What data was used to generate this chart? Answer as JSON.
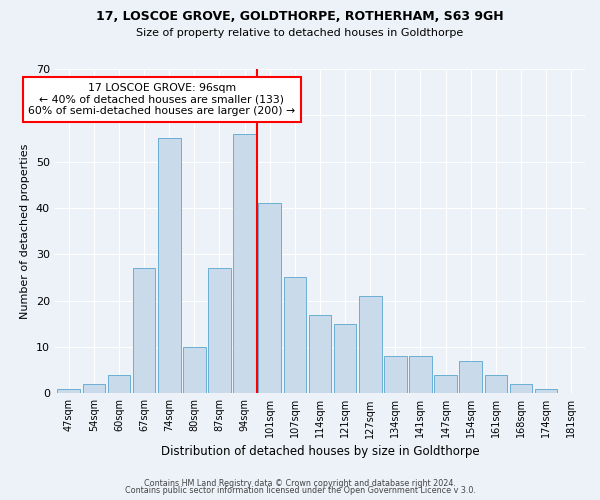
{
  "title1": "17, LOSCOE GROVE, GOLDTHORPE, ROTHERHAM, S63 9GH",
  "title2": "Size of property relative to detached houses in Goldthorpe",
  "xlabel": "Distribution of detached houses by size in Goldthorpe",
  "ylabel": "Number of detached properties",
  "footer1": "Contains HM Land Registry data © Crown copyright and database right 2024.",
  "footer2": "Contains public sector information licensed under the Open Government Licence v 3.0.",
  "bar_labels": [
    "47sqm",
    "54sqm",
    "60sqm",
    "67sqm",
    "74sqm",
    "80sqm",
    "87sqm",
    "94sqm",
    "101sqm",
    "107sqm",
    "114sqm",
    "121sqm",
    "127sqm",
    "134sqm",
    "141sqm",
    "147sqm",
    "154sqm",
    "161sqm",
    "168sqm",
    "174sqm",
    "181sqm"
  ],
  "bar_values": [
    1,
    2,
    4,
    27,
    55,
    10,
    27,
    56,
    41,
    25,
    17,
    15,
    21,
    8,
    8,
    4,
    7,
    4,
    2,
    1,
    0
  ],
  "bar_color": "#c9daea",
  "bar_edge_color": "#6baed6",
  "vline_x_index": 7.5,
  "vline_color": "red",
  "annotation_title": "17 LOSCOE GROVE: 96sqm",
  "annotation_line1": "← 40% of detached houses are smaller (133)",
  "annotation_line2": "60% of semi-detached houses are larger (200) →",
  "annotation_box_color": "#ffffff",
  "annotation_box_edge": "red",
  "ylim": [
    0,
    70
  ],
  "yticks": [
    0,
    10,
    20,
    30,
    40,
    50,
    60,
    70
  ],
  "background_color": "#edf2f8"
}
